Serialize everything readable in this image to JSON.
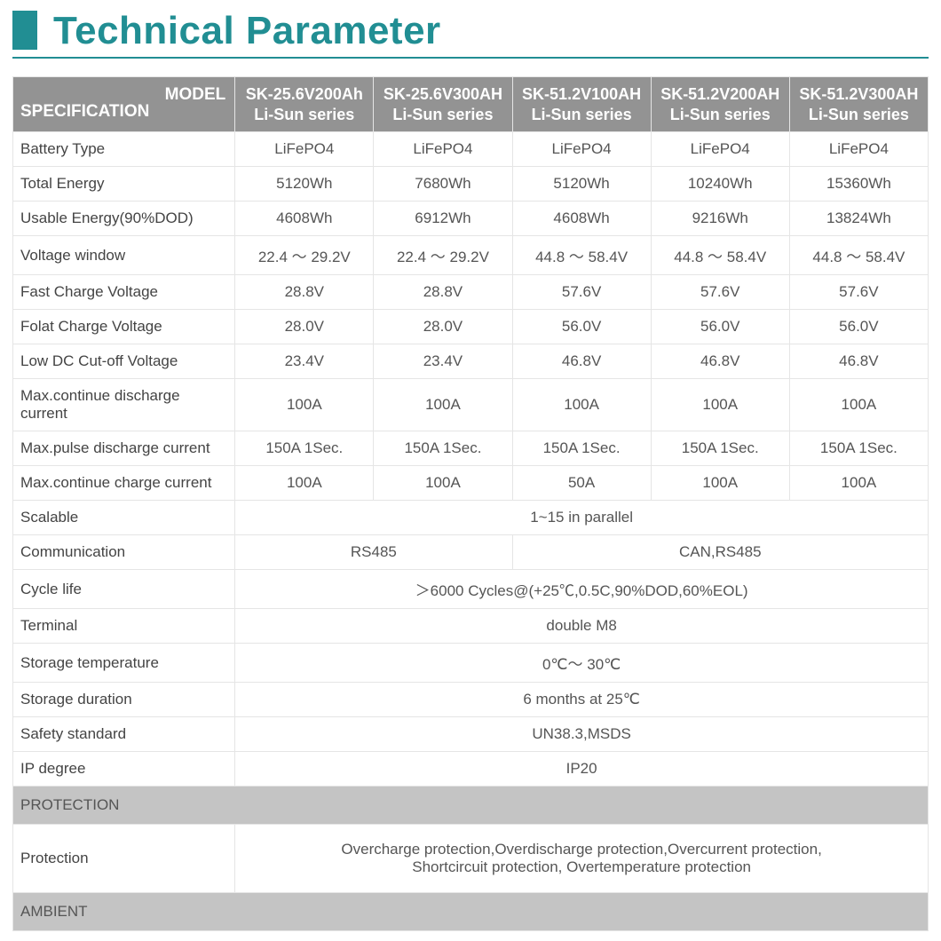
{
  "colors": {
    "accent": "#218e93",
    "header_bg": "#939393",
    "section_bg": "#c4c4c4",
    "border": "#e5e5e5",
    "text_title": "#218e93",
    "text_body": "#555555"
  },
  "title": "Technical Parameter",
  "header": {
    "model_label": "MODEL",
    "spec_label": "SPECIFICATION",
    "models": [
      {
        "line1": "SK-25.6V200Ah",
        "line2": "Li-Sun series"
      },
      {
        "line1": "SK-25.6V300AH",
        "line2": "Li-Sun series"
      },
      {
        "line1": "SK-51.2V100AH",
        "line2": "Li-Sun series"
      },
      {
        "line1": "SK-51.2V200AH",
        "line2": "Li-Sun series"
      },
      {
        "line1": "SK-51.2V300AH",
        "line2": "Li-Sun series"
      }
    ]
  },
  "rows_multi": [
    {
      "label": "Battery Type",
      "vals": [
        "LiFePO4",
        "LiFePO4",
        "LiFePO4",
        "LiFePO4",
        "LiFePO4"
      ]
    },
    {
      "label": "Total Energy",
      "vals": [
        "5120Wh",
        "7680Wh",
        "5120Wh",
        "10240Wh",
        "15360Wh"
      ]
    },
    {
      "label": "Usable Energy(90%DOD)",
      "vals": [
        "4608Wh",
        "6912Wh",
        "4608Wh",
        "9216Wh",
        "13824Wh"
      ]
    },
    {
      "label": "Voltage window",
      "vals": [
        "22.4 ～ 29.2V",
        "22.4 ～ 29.2V",
        "44.8 ～ 58.4V",
        "44.8 ～ 58.4V",
        "44.8 ～ 58.4V"
      ]
    },
    {
      "label": "Fast Charge Voltage",
      "vals": [
        "28.8V",
        "28.8V",
        "57.6V",
        "57.6V",
        "57.6V"
      ]
    },
    {
      "label": "Folat Charge Voltage",
      "vals": [
        "28.0V",
        "28.0V",
        "56.0V",
        "56.0V",
        "56.0V"
      ]
    },
    {
      "label": "Low DC Cut-off Voltage",
      "vals": [
        "23.4V",
        "23.4V",
        "46.8V",
        "46.8V",
        "46.8V"
      ]
    },
    {
      "label": "Max.continue discharge current",
      "vals": [
        "100A",
        "100A",
        "100A",
        "100A",
        "100A"
      ]
    },
    {
      "label": "Max.pulse discharge current",
      "vals": [
        "150A 1Sec.",
        "150A 1Sec.",
        "150A 1Sec.",
        "150A 1Sec.",
        "150A 1Sec."
      ]
    },
    {
      "label": "Max.continue charge current",
      "vals": [
        "100A",
        "100A",
        "50A",
        "100A",
        "100A"
      ]
    }
  ],
  "row_scalable": {
    "label": "Scalable",
    "val": "1~15 in parallel"
  },
  "row_comm": {
    "label": "Communication",
    "val_a": "RS485",
    "val_b": "CAN,RS485"
  },
  "rows_full": [
    {
      "label": "Cycle life",
      "val": "＞6000 Cycles@(+25℃,0.5C,90%DOD,60%EOL)"
    },
    {
      "label": "Terminal",
      "val": "double M8"
    },
    {
      "label": "Storage temperature",
      "val": "0℃～ 30℃"
    },
    {
      "label": "Storage duration",
      "val": "6 months at 25℃"
    },
    {
      "label": "Safety standard",
      "val": "UN38.3,MSDS"
    },
    {
      "label": "IP degree",
      "val": "IP20"
    }
  ],
  "sections": {
    "protection_header": "PROTECTION",
    "protection_row": {
      "label": "Protection",
      "line1": "Overcharge protection,Overdischarge protection,Overcurrent protection,",
      "line2": "Shortcircuit protection, Overtemperature protection"
    },
    "ambient_header": "AMBIENT"
  }
}
